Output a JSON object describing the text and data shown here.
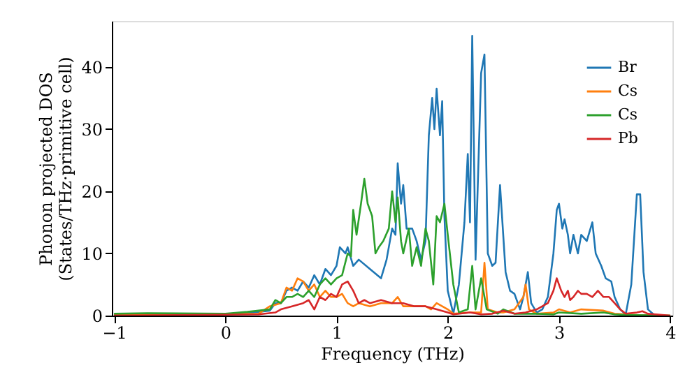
{
  "chart_data": {
    "type": "line",
    "xlabel": "Frequency (THz)",
    "ylabel": "Phonon projected DOS\n(States/THz·primitive cell)",
    "xlim": [
      -1.02,
      4.02
    ],
    "ylim": [
      0,
      47.4
    ],
    "xticks": [
      -1,
      0,
      1,
      2,
      3,
      4
    ],
    "yticks": [
      0,
      10,
      20,
      30,
      40
    ],
    "grid": false,
    "legend": "top right",
    "line_style": "solid",
    "marker": "none",
    "series": [
      {
        "name": "Br",
        "color": "#1f77b4",
        "x": [
          -1,
          0,
          0.2,
          0.4,
          0.45,
          0.5,
          0.55,
          0.6,
          0.65,
          0.7,
          0.75,
          0.8,
          0.85,
          0.9,
          0.95,
          1.0,
          1.03,
          1.08,
          1.1,
          1.15,
          1.2,
          1.3,
          1.4,
          1.45,
          1.5,
          1.53,
          1.55,
          1.58,
          1.6,
          1.63,
          1.68,
          1.72,
          1.76,
          1.8,
          1.83,
          1.86,
          1.88,
          1.9,
          1.93,
          1.95,
          1.97,
          2.0,
          2.05,
          2.1,
          2.15,
          2.18,
          2.2,
          2.22,
          2.25,
          2.3,
          2.33,
          2.36,
          2.4,
          2.43,
          2.47,
          2.52,
          2.56,
          2.6,
          2.65,
          2.68,
          2.72,
          2.75,
          2.8,
          2.85,
          2.9,
          2.95,
          2.98,
          3.0,
          3.03,
          3.05,
          3.08,
          3.1,
          3.13,
          3.17,
          3.2,
          3.25,
          3.3,
          3.33,
          3.38,
          3.42,
          3.47,
          3.5,
          3.55,
          3.6,
          3.65,
          3.7,
          3.73,
          3.76,
          3.8,
          3.85
        ],
        "values": [
          0.2,
          0.2,
          0.4,
          0.8,
          2,
          2,
          4,
          4.5,
          4,
          5.5,
          4.5,
          6.5,
          5,
          7.5,
          6.5,
          8,
          11,
          10,
          11,
          8,
          9,
          7.5,
          6,
          9,
          14,
          13,
          24.5,
          18,
          21,
          14,
          14,
          12,
          9,
          12,
          29,
          35,
          30,
          36.5,
          29,
          34.5,
          16,
          4,
          0.3,
          5,
          15,
          26,
          15,
          45,
          9,
          39,
          42,
          10,
          8,
          8.5,
          21,
          7,
          4,
          3.5,
          1,
          3,
          7,
          2,
          0.5,
          1,
          3,
          10,
          17,
          18,
          14,
          15.5,
          13,
          10,
          13,
          10,
          13,
          12,
          15,
          10,
          8,
          6,
          5.5,
          3,
          1,
          0.2,
          5,
          19.5,
          19.5,
          7,
          1,
          0.2
        ]
      },
      {
        "name": "Cs",
        "color": "#ff7f0e",
        "x": [
          -1,
          0.3,
          0.4,
          0.5,
          0.55,
          0.6,
          0.65,
          0.7,
          0.75,
          0.8,
          0.85,
          0.9,
          0.95,
          1.0,
          1.05,
          1.1,
          1.15,
          1.2,
          1.3,
          1.4,
          1.5,
          1.55,
          1.6,
          1.7,
          1.8,
          1.85,
          1.9,
          1.95,
          2.0,
          2.05,
          2.2,
          2.3,
          2.33,
          2.36,
          2.45,
          2.5,
          2.6,
          2.68,
          2.7,
          2.73,
          2.8,
          2.95,
          3.0,
          3.1,
          3.2,
          3.4,
          3.5,
          3.7,
          4.0
        ],
        "values": [
          0.1,
          0.3,
          1.5,
          2,
          4.5,
          4,
          6,
          5.5,
          4,
          5,
          3,
          4,
          3,
          3,
          3.5,
          2,
          1.5,
          2,
          1.5,
          2,
          2,
          3,
          1.5,
          1.5,
          1.5,
          1,
          2,
          1.5,
          1,
          0.3,
          0.5,
          0.5,
          8.5,
          1,
          0.5,
          0.5,
          1,
          3,
          5,
          1,
          0.3,
          0.5,
          1,
          0.5,
          1,
          0.8,
          0.3,
          0.1,
          0
        ]
      },
      {
        "name": "Cs",
        "color": "#2ca02c",
        "x": [
          -1,
          -0.7,
          0,
          0.2,
          0.4,
          0.45,
          0.5,
          0.55,
          0.6,
          0.65,
          0.7,
          0.75,
          0.8,
          0.85,
          0.9,
          0.95,
          1.0,
          1.05,
          1.1,
          1.13,
          1.15,
          1.18,
          1.22,
          1.25,
          1.28,
          1.32,
          1.35,
          1.38,
          1.42,
          1.47,
          1.5,
          1.53,
          1.55,
          1.58,
          1.6,
          1.65,
          1.68,
          1.72,
          1.76,
          1.8,
          1.83,
          1.87,
          1.9,
          1.93,
          1.97,
          2.0,
          2.05,
          2.1,
          2.18,
          2.22,
          2.25,
          2.3,
          2.35,
          2.45,
          2.5,
          2.6,
          2.8,
          2.95,
          3.0,
          3.2,
          3.4,
          3.5,
          3.6,
          4.0
        ],
        "values": [
          0.3,
          0.4,
          0.3,
          0.6,
          1,
          2.5,
          2,
          3,
          3,
          3.5,
          3,
          4,
          3,
          5,
          6,
          5,
          6,
          6.5,
          10,
          9.5,
          17,
          13,
          18,
          22,
          18,
          16,
          10,
          11,
          12,
          14,
          20,
          15,
          19,
          12,
          10,
          14,
          8,
          11,
          8,
          14,
          12,
          5,
          16,
          15,
          18,
          13,
          5,
          0.5,
          1,
          8,
          1,
          6,
          1,
          0.3,
          1,
          0.3,
          0.3,
          0.2,
          0.5,
          0.3,
          0.5,
          0.2,
          0.1,
          0
        ]
      },
      {
        "name": "Pb",
        "color": "#d62728",
        "x": [
          -1,
          0.3,
          0.45,
          0.5,
          0.6,
          0.7,
          0.75,
          0.8,
          0.85,
          0.9,
          0.95,
          1.0,
          1.05,
          1.1,
          1.15,
          1.2,
          1.25,
          1.3,
          1.4,
          1.5,
          1.6,
          1.7,
          1.8,
          1.9,
          2.0,
          2.05,
          2.2,
          2.3,
          2.4,
          2.5,
          2.6,
          2.7,
          2.8,
          2.9,
          2.95,
          2.98,
          3.02,
          3.05,
          3.08,
          3.1,
          3.13,
          3.17,
          3.2,
          3.25,
          3.3,
          3.35,
          3.4,
          3.45,
          3.5,
          3.55,
          3.6,
          3.7,
          3.75,
          3.8,
          4.0
        ],
        "values": [
          0,
          0.2,
          0.5,
          1,
          1.5,
          2,
          2.5,
          1,
          3,
          2.5,
          3.5,
          3,
          5,
          5.5,
          4,
          2,
          2.5,
          2,
          2.5,
          2,
          2,
          1.5,
          1.5,
          1,
          0.5,
          0.2,
          0.5,
          0.2,
          0.3,
          0.8,
          0.3,
          0.5,
          1,
          2,
          4,
          6,
          4,
          3,
          4,
          2.5,
          3,
          4,
          3.5,
          3.5,
          3,
          4,
          3,
          3,
          2,
          1,
          0.3,
          0.5,
          0.7,
          0.3,
          0
        ]
      }
    ]
  }
}
